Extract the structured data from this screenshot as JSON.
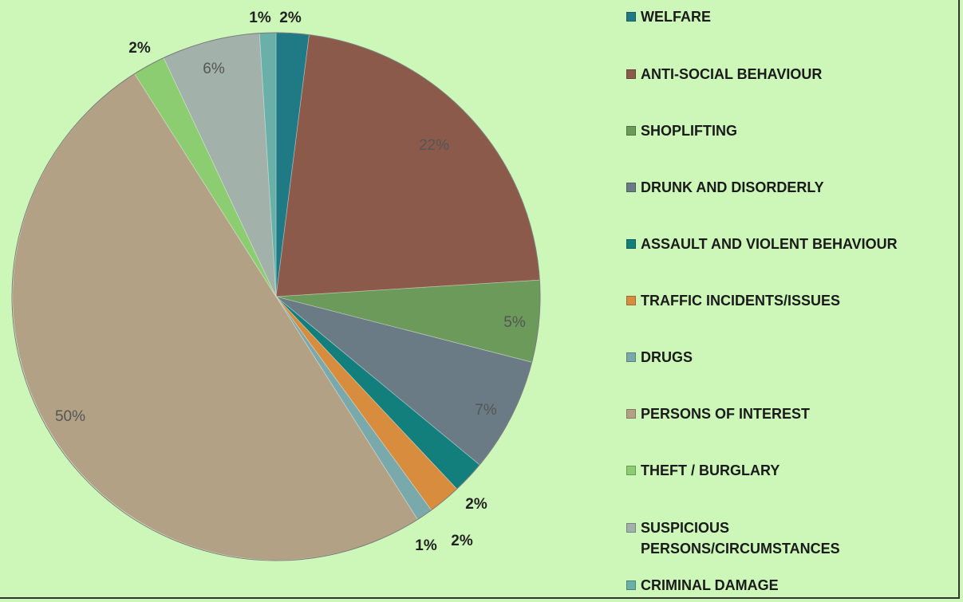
{
  "chart_data": {
    "type": "pie",
    "title": "",
    "slices": [
      {
        "name": "WELFARE",
        "value": 2,
        "label": "2%",
        "color": "#1f7a86"
      },
      {
        "name": "ANTI-SOCIAL BEHAVIOUR",
        "value": 22,
        "label": "22%",
        "color": "#8b5a4b"
      },
      {
        "name": "SHOPLIFTING",
        "value": 5,
        "label": "5%",
        "color": "#6b9a5a"
      },
      {
        "name": "DRUNK AND DISORDERLY",
        "value": 7,
        "label": "7%",
        "color": "#6b7b86"
      },
      {
        "name": "ASSAULT AND VIOLENT BEHAVIOUR",
        "value": 2,
        "label": "2%",
        "color": "#137f7d"
      },
      {
        "name": "TRAFFIC INCIDENTS/ISSUES",
        "value": 2,
        "label": "2%",
        "color": "#d88c3e"
      },
      {
        "name": "DRUGS",
        "value": 1,
        "label": "1%",
        "color": "#7aa9ac"
      },
      {
        "name": "PERSONS OF INTEREST",
        "value": 50,
        "label": "50%",
        "color": "#b3a186"
      },
      {
        "name": "THEFT / BURGLARY",
        "value": 2,
        "label": "2%",
        "color": "#8ccd72"
      },
      {
        "name": "SUSPICIOUS PERSONS/CIRCUMSTANCES",
        "value": 6,
        "label": "6%",
        "color": "#a3b1ab"
      },
      {
        "name": "CRIMINAL DAMAGE",
        "value": 1,
        "label": "1%",
        "color": "#69b0a9"
      }
    ],
    "legend_position": "right"
  },
  "legend": {
    "items": [
      {
        "label": "WELFARE",
        "color": "#1f7a86"
      },
      {
        "label": "ANTI-SOCIAL BEHAVIOUR",
        "color": "#8b5a4b"
      },
      {
        "label": "SHOPLIFTING",
        "color": "#6b9a5a"
      },
      {
        "label": "DRUNK AND DISORDERLY",
        "color": "#6b7b86"
      },
      {
        "label": "ASSAULT AND VIOLENT BEHAVIOUR",
        "color": "#137f7d"
      },
      {
        "label": "TRAFFIC INCIDENTS/ISSUES",
        "color": "#d88c3e"
      },
      {
        "label": "DRUGS",
        "color": "#7aa9ac"
      },
      {
        "label": "PERSONS OF INTEREST",
        "color": "#b3a186"
      },
      {
        "label": "THEFT / BURGLARY",
        "color": "#8ccd72"
      },
      {
        "label": "SUSPICIOUS\nPERSONS/CIRCUMSTANCES",
        "color": "#a3b1ab"
      },
      {
        "label": "CRIMINAL DAMAGE",
        "color": "#69b0a9"
      }
    ]
  }
}
